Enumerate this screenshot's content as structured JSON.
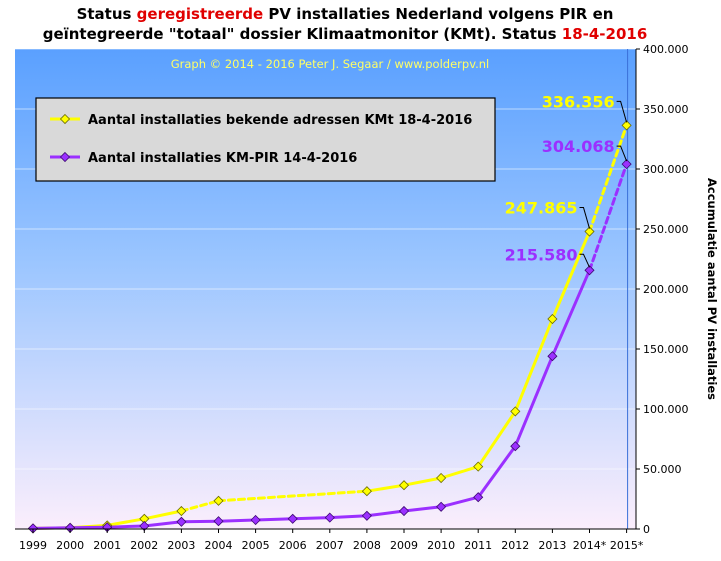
{
  "title": {
    "line1_a": "Status ",
    "line1_red": "geregistreerde",
    "line1_b": " PV installaties Nederland volgens PIR en",
    "line2_a": "geïntegreerde \"totaal\" dossier Klimaatmonitor (KMt). Status ",
    "line2_red": "18-4-2016"
  },
  "colors": {
    "kmt": "#ffff00",
    "kmpir": "#9b30ff",
    "accent_red": "#e00000",
    "plot_top": "#5aa0ff",
    "plot_bottom": "#fbeefc"
  },
  "chart_data": {
    "type": "line",
    "credit": "Graph © 2014 - 2016 Peter J. Segaar / www.polderpv.nl",
    "ylabel": "Accumulatie aantal PV installaties",
    "xlabel": "",
    "ylim": [
      0,
      400000
    ],
    "ytick_values": [
      0,
      50000,
      100000,
      150000,
      200000,
      250000,
      300000,
      350000,
      400000
    ],
    "ytick_labels": [
      "0",
      "50.000",
      "100.000",
      "150.000",
      "200.000",
      "250.000",
      "300.000",
      "350.000",
      "400.000"
    ],
    "categories": [
      "1999",
      "2000",
      "2001",
      "2002",
      "2003",
      "2004",
      "2005",
      "2006",
      "2007",
      "2008",
      "2009",
      "2010",
      "2011",
      "2012",
      "2013",
      "2014*",
      "2015*"
    ],
    "grid": true,
    "legend_position": "top-left",
    "series": [
      {
        "name": "Aantal installaties bekende adressen KMt 18-4-2016",
        "color": "#ffff00",
        "values": [
          500,
          1000,
          3000,
          8500,
          15000,
          23500,
          null,
          null,
          null,
          31500,
          36500,
          42500,
          52000,
          98000,
          175000,
          247865,
          336356
        ],
        "dashed_from": "2003",
        "dashed_to": "2008",
        "dashed_last": true
      },
      {
        "name": "Aantal installaties KM-PIR 14-4-2016",
        "color": "#9b30ff",
        "values": [
          500,
          1000,
          1500,
          2500,
          6000,
          6500,
          7500,
          8500,
          9500,
          11000,
          15000,
          18500,
          26500,
          69000,
          144000,
          215580,
          304068
        ],
        "dashed_last": true
      }
    ],
    "annotations": [
      {
        "label": "336.356",
        "series": 0,
        "category": "2015*",
        "color": "#ffff00"
      },
      {
        "label": "247.865",
        "series": 0,
        "category": "2014*",
        "color": "#ffff00"
      },
      {
        "label": "304.068",
        "series": 1,
        "category": "2015*",
        "color": "#9b30ff"
      },
      {
        "label": "215.580",
        "series": 1,
        "category": "2014*",
        "color": "#9b30ff"
      }
    ]
  }
}
